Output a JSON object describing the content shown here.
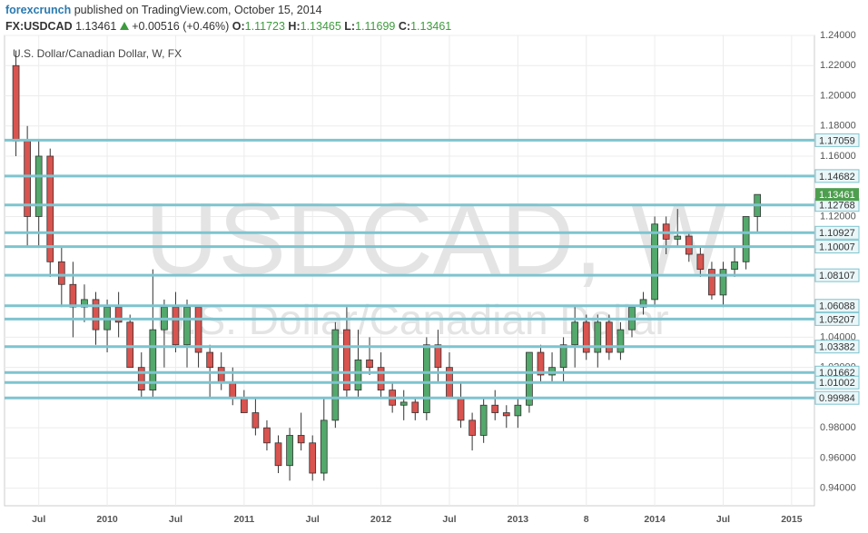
{
  "header": {
    "author": "forexcrunch",
    "published": "published on TradingView.com, October 15, 2014",
    "symbol": "FX:USDCAD",
    "last": 1.13461,
    "change": "+0.00516",
    "change_percent": "(+0.46%)",
    "ohlc_labels": [
      "O:",
      "H:",
      "L:",
      "C:"
    ],
    "ohlc": [
      1.11723,
      1.13465,
      1.11699,
      1.13461
    ]
  },
  "chart_data": {
    "type": "candlestick",
    "title": "U.S. Dollar/Canadian Dollar, W, FX",
    "watermark": "USDCAD, W",
    "watermark_subtitle": "U.S. Dollar/Canadian Dollar",
    "x": [
      "2009-05",
      "2009-06",
      "2009-07",
      "2009-08",
      "2009-09",
      "2009-10",
      "2009-11",
      "2009-12",
      "2010-01",
      "2010-02",
      "2010-03",
      "2010-04",
      "2010-05",
      "2010-06",
      "2010-07",
      "2010-08",
      "2010-09",
      "2010-10",
      "2010-11",
      "2010-12",
      "2011-01",
      "2011-02",
      "2011-03",
      "2011-04",
      "2011-05",
      "2011-06",
      "2011-07",
      "2011-08",
      "2011-09",
      "2011-10",
      "2011-11",
      "2011-12",
      "2012-01",
      "2012-02",
      "2012-03",
      "2012-04",
      "2012-05",
      "2012-06",
      "2012-07",
      "2012-08",
      "2012-09",
      "2012-10",
      "2012-11",
      "2012-12",
      "2013-01",
      "2013-02",
      "2013-03",
      "2013-04",
      "2013-05",
      "2013-06",
      "2013-07",
      "2013-08",
      "2013-09",
      "2013-10",
      "2013-11",
      "2013-12",
      "2014-01",
      "2014-02",
      "2014-03",
      "2014-04",
      "2014-05",
      "2014-06",
      "2014-07",
      "2014-08",
      "2014-09",
      "2014-10"
    ],
    "ohlc": [
      [
        1.22,
        1.23,
        1.16,
        1.17
      ],
      [
        1.17,
        1.18,
        1.1,
        1.12
      ],
      [
        1.12,
        1.17,
        1.1,
        1.16
      ],
      [
        1.16,
        1.165,
        1.08,
        1.09
      ],
      [
        1.09,
        1.1,
        1.06,
        1.075
      ],
      [
        1.075,
        1.09,
        1.04,
        1.06
      ],
      [
        1.06,
        1.075,
        1.05,
        1.065
      ],
      [
        1.065,
        1.07,
        1.035,
        1.045
      ],
      [
        1.045,
        1.065,
        1.03,
        1.06
      ],
      [
        1.06,
        1.07,
        1.04,
        1.05
      ],
      [
        1.05,
        1.055,
        1.02,
        1.02
      ],
      [
        1.02,
        1.03,
        1.0,
        1.005
      ],
      [
        1.005,
        1.085,
        1.0,
        1.045
      ],
      [
        1.045,
        1.065,
        1.02,
        1.06
      ],
      [
        1.06,
        1.07,
        1.03,
        1.035
      ],
      [
        1.035,
        1.065,
        1.02,
        1.06
      ],
      [
        1.06,
        1.06,
        1.02,
        1.03
      ],
      [
        1.03,
        1.035,
        1.0,
        1.02
      ],
      [
        1.02,
        1.03,
        1.005,
        1.01
      ],
      [
        1.01,
        1.02,
        0.995,
        1.0
      ],
      [
        1.0,
        1.005,
        0.99,
        0.99
      ],
      [
        0.99,
        1.0,
        0.975,
        0.98
      ],
      [
        0.98,
        0.985,
        0.965,
        0.97
      ],
      [
        0.97,
        0.975,
        0.95,
        0.955
      ],
      [
        0.955,
        0.98,
        0.945,
        0.975
      ],
      [
        0.975,
        0.99,
        0.965,
        0.97
      ],
      [
        0.97,
        0.975,
        0.945,
        0.95
      ],
      [
        0.95,
        1.0,
        0.945,
        0.985
      ],
      [
        0.985,
        1.05,
        0.98,
        1.045
      ],
      [
        1.045,
        1.06,
        1.0,
        1.005
      ],
      [
        1.005,
        1.045,
        1.0,
        1.025
      ],
      [
        1.025,
        1.04,
        1.015,
        1.02
      ],
      [
        1.02,
        1.03,
        1.0,
        1.005
      ],
      [
        1.005,
        1.01,
        0.99,
        0.995
      ],
      [
        0.995,
        1.005,
        0.985,
        0.997
      ],
      [
        0.997,
        1.0,
        0.985,
        0.99
      ],
      [
        0.99,
        1.04,
        0.985,
        1.035
      ],
      [
        1.035,
        1.045,
        1.01,
        1.02
      ],
      [
        1.02,
        1.03,
        1.0,
        1.0
      ],
      [
        1.0,
        1.01,
        0.98,
        0.985
      ],
      [
        0.985,
        0.99,
        0.965,
        0.975
      ],
      [
        0.975,
        1.0,
        0.97,
        0.995
      ],
      [
        0.995,
        1.005,
        0.985,
        0.99
      ],
      [
        0.99,
        0.995,
        0.98,
        0.988
      ],
      [
        0.988,
        1.0,
        0.98,
        0.995
      ],
      [
        0.995,
        1.03,
        0.99,
        1.03
      ],
      [
        1.03,
        1.035,
        1.01,
        1.015
      ],
      [
        1.015,
        1.03,
        1.01,
        1.02
      ],
      [
        1.02,
        1.04,
        1.01,
        1.035
      ],
      [
        1.035,
        1.06,
        1.02,
        1.05
      ],
      [
        1.05,
        1.055,
        1.025,
        1.03
      ],
      [
        1.03,
        1.055,
        1.02,
        1.05
      ],
      [
        1.05,
        1.055,
        1.025,
        1.03
      ],
      [
        1.03,
        1.05,
        1.025,
        1.045
      ],
      [
        1.045,
        1.06,
        1.04,
        1.06
      ],
      [
        1.06,
        1.07,
        1.055,
        1.065
      ],
      [
        1.065,
        1.12,
        1.06,
        1.115
      ],
      [
        1.115,
        1.12,
        1.095,
        1.105
      ],
      [
        1.105,
        1.125,
        1.1,
        1.107
      ],
      [
        1.107,
        1.11,
        1.09,
        1.095
      ],
      [
        1.095,
        1.1,
        1.08,
        1.085
      ],
      [
        1.085,
        1.09,
        1.065,
        1.068
      ],
      [
        1.068,
        1.09,
        1.06,
        1.085
      ],
      [
        1.085,
        1.1,
        1.08,
        1.09
      ],
      [
        1.09,
        1.12,
        1.085,
        1.12
      ],
      [
        1.12,
        1.13465,
        1.11,
        1.13461
      ]
    ],
    "up_color": "#53a86b",
    "down_color": "#d9534f",
    "levels": [
      1.17059,
      1.14682,
      1.12768,
      1.10927,
      1.10007,
      1.08107,
      1.06088,
      1.05207,
      1.03382,
      1.01662,
      1.01002,
      0.99984
    ],
    "level_color": "#7ec4cf",
    "xlim": [
      "2009-04",
      "2015-03"
    ],
    "xticks": [
      {
        "value": "2009-07",
        "label": "Jul"
      },
      {
        "value": "2010-01",
        "label": "2010"
      },
      {
        "value": "2010-07",
        "label": "Jul"
      },
      {
        "value": "2011-01",
        "label": "2011"
      },
      {
        "value": "2011-07",
        "label": "Jul"
      },
      {
        "value": "2012-01",
        "label": "2012"
      },
      {
        "value": "2012-07",
        "label": "Jul"
      },
      {
        "value": "2013-01",
        "label": "2013"
      },
      {
        "value": "2013-07",
        "label": "8"
      },
      {
        "value": "2014-01",
        "label": "2014"
      },
      {
        "value": "2014-07",
        "label": "Jul"
      },
      {
        "value": "2015-01",
        "label": "2015"
      }
    ],
    "ylim": [
      0.92836,
      1.24
    ],
    "yticks": [
      {
        "value": 1.24,
        "label": "1.24000"
      },
      {
        "value": 1.22,
        "label": "1.22000"
      },
      {
        "value": 1.2,
        "label": "1.20000"
      },
      {
        "value": 1.18,
        "label": "1.18000"
      },
      {
        "value": 1.16,
        "label": "1.16000"
      },
      {
        "value": 1.12,
        "label": "1.12000"
      },
      {
        "value": 1.04,
        "label": "1.04000"
      },
      {
        "value": 1.02,
        "label": "1.02000"
      },
      {
        "value": 0.98,
        "label": "0.98000"
      },
      {
        "value": 0.96,
        "label": "0.96000"
      },
      {
        "value": 0.94,
        "label": "0.94000"
      }
    ],
    "grid": true
  }
}
